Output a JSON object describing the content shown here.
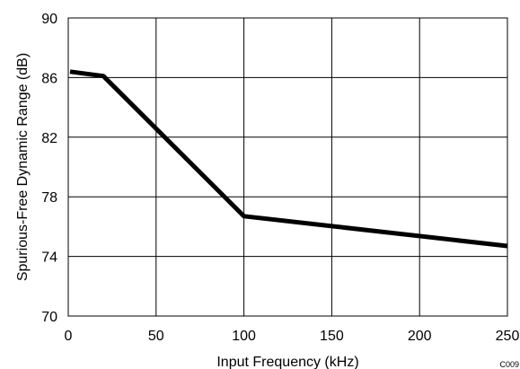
{
  "chart_data": {
    "type": "line",
    "title": "",
    "xlabel": "Input Frequency (kHz)",
    "ylabel": "Spurious-Free Dynamic Range (dB)",
    "xlim": [
      0,
      250
    ],
    "ylim": [
      70,
      90
    ],
    "x_ticks": [
      0,
      50,
      100,
      150,
      200,
      250
    ],
    "y_ticks": [
      70,
      74,
      78,
      82,
      86,
      90
    ],
    "x_tick_labels": [
      "0",
      "50",
      "100",
      "150",
      "200",
      "250"
    ],
    "y_tick_labels": [
      "70",
      "74",
      "78",
      "82",
      "86",
      "90"
    ],
    "grid": true,
    "legend": "none",
    "series": [
      {
        "color": "#000000",
        "x": [
          1,
          20,
          100,
          250
        ],
        "y": [
          86.4,
          86.1,
          76.7,
          74.7
        ]
      }
    ],
    "annotation": "C009"
  }
}
